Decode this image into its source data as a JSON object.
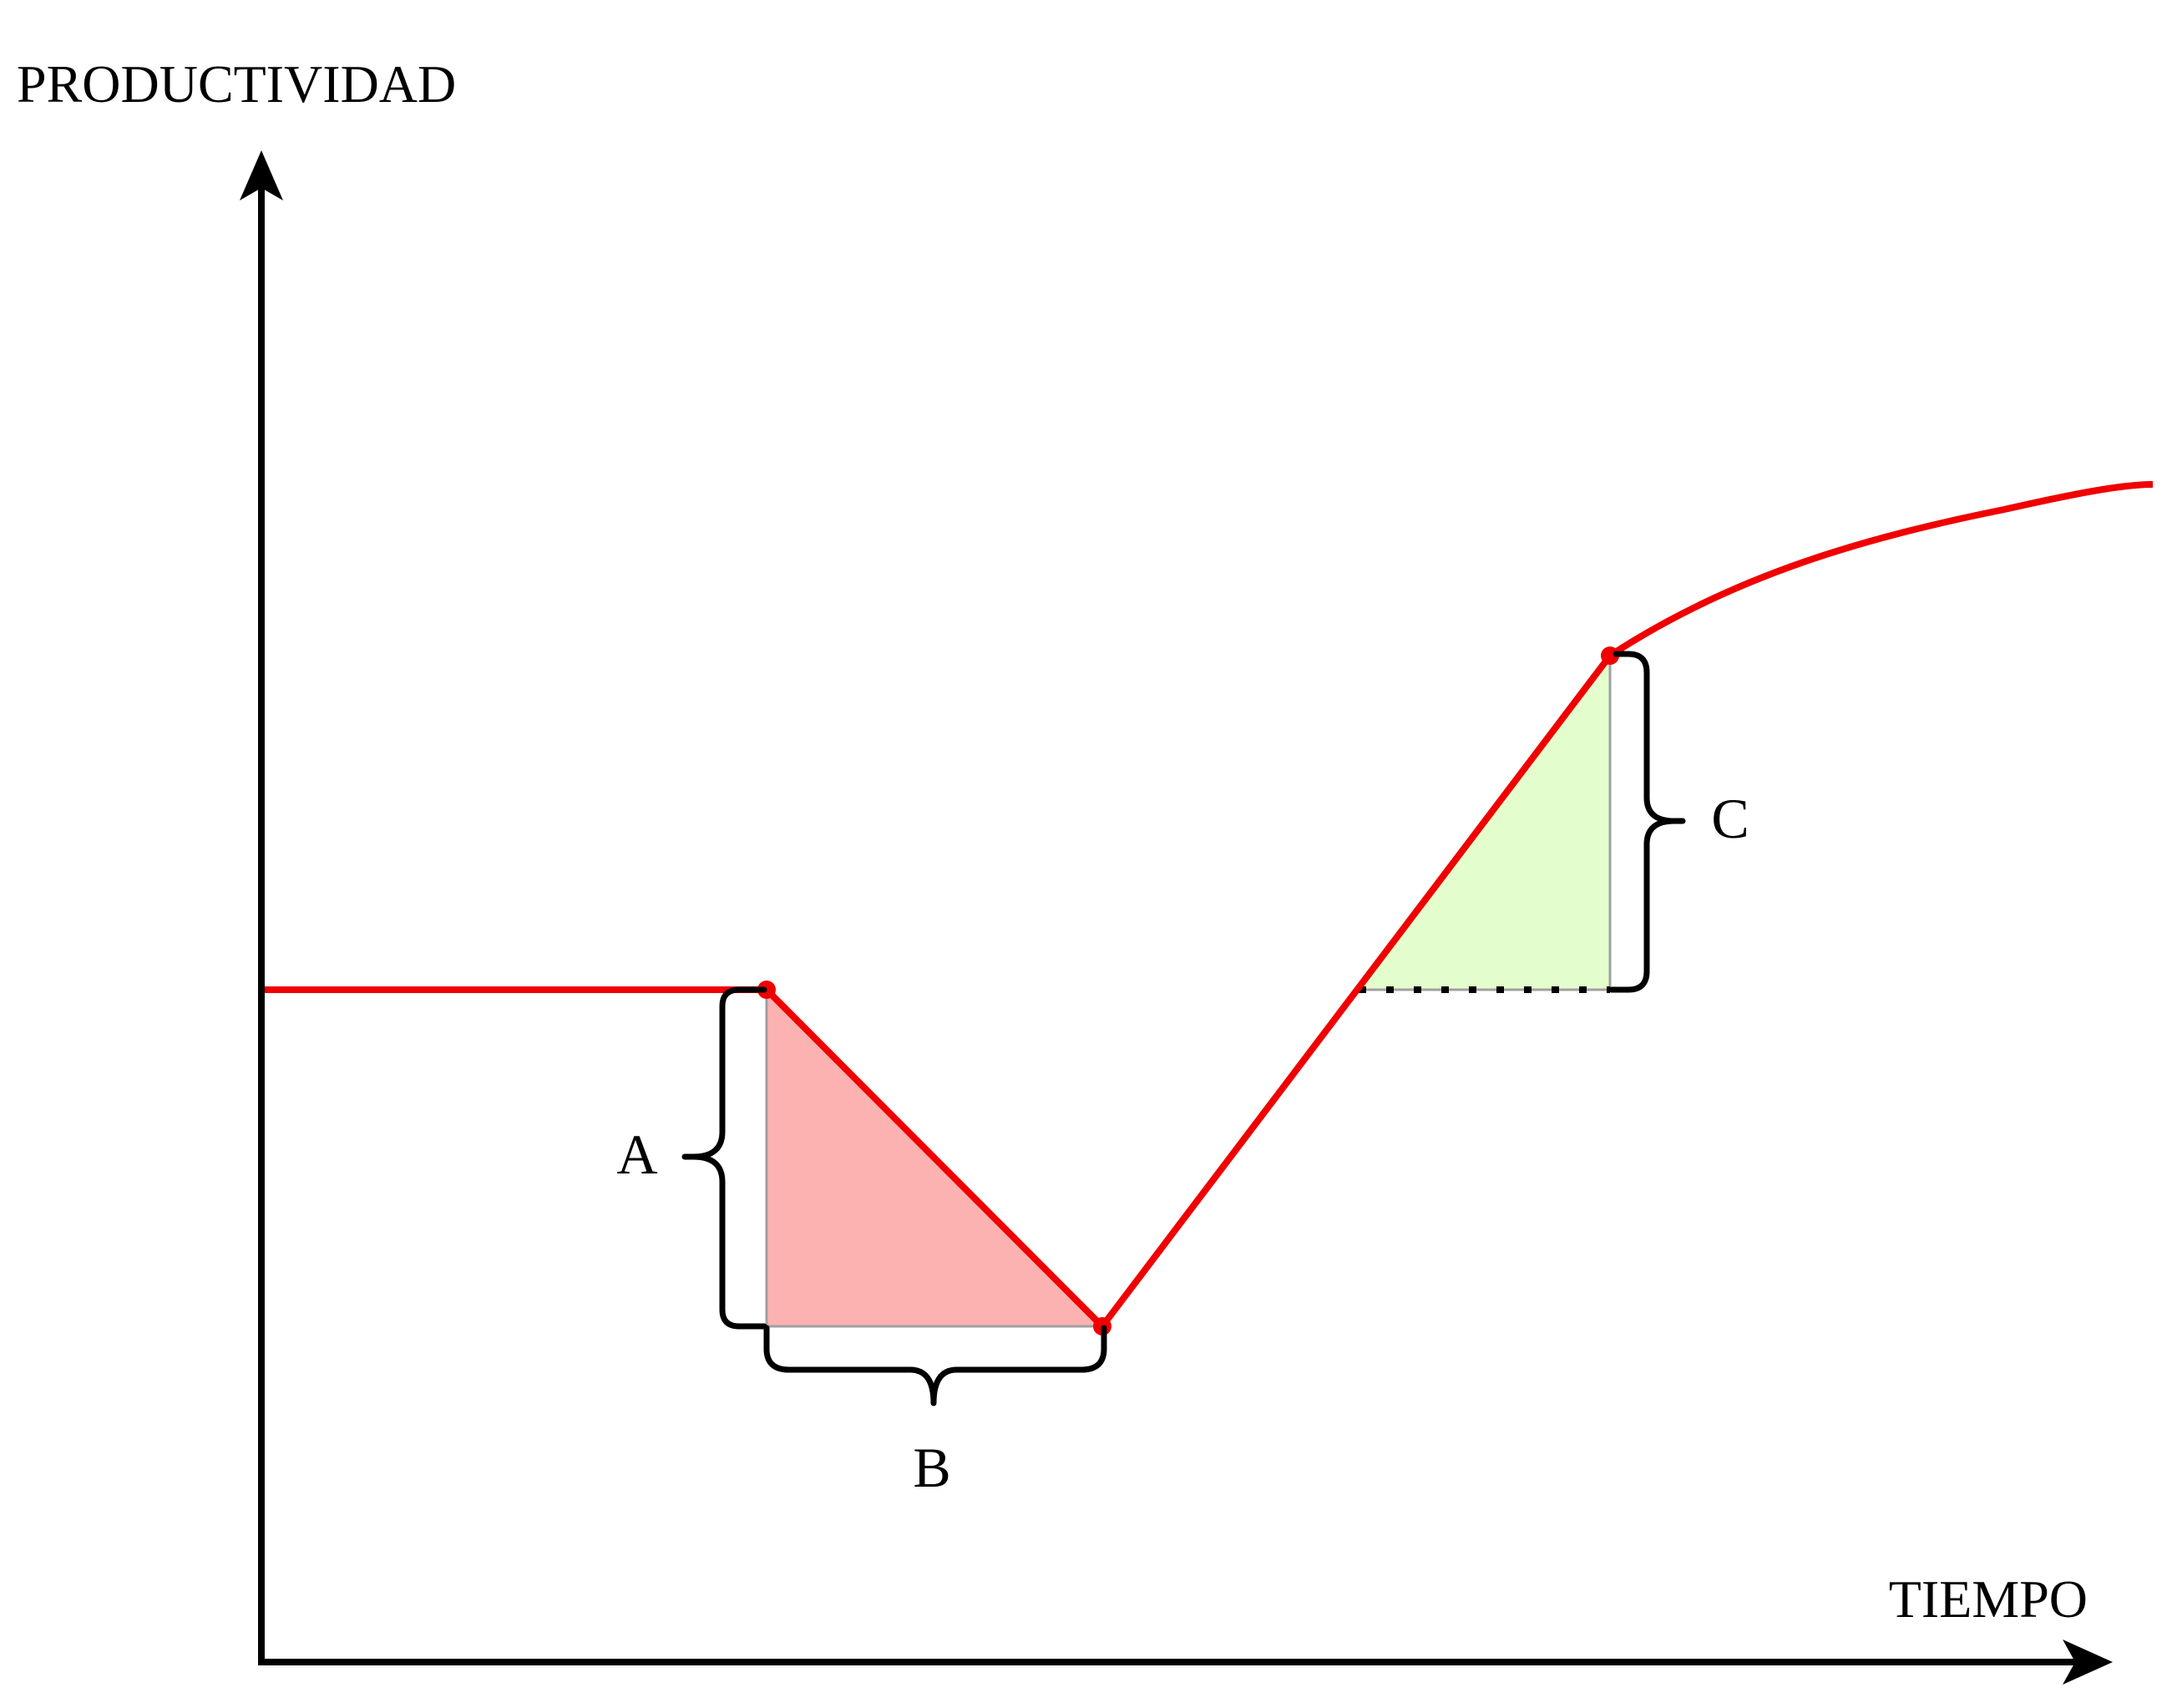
{
  "axes": {
    "y_label": "PRODUCTIVIDAD",
    "x_label": "TIEMPO"
  },
  "annotations": {
    "a": "A",
    "b": "B",
    "c": "C"
  },
  "colors": {
    "curve": "#f00000",
    "loss_area": "#fdb2b2",
    "gain_area": "#e4fdcc",
    "axis": "#000000",
    "guide": "#a0a0a0"
  }
}
